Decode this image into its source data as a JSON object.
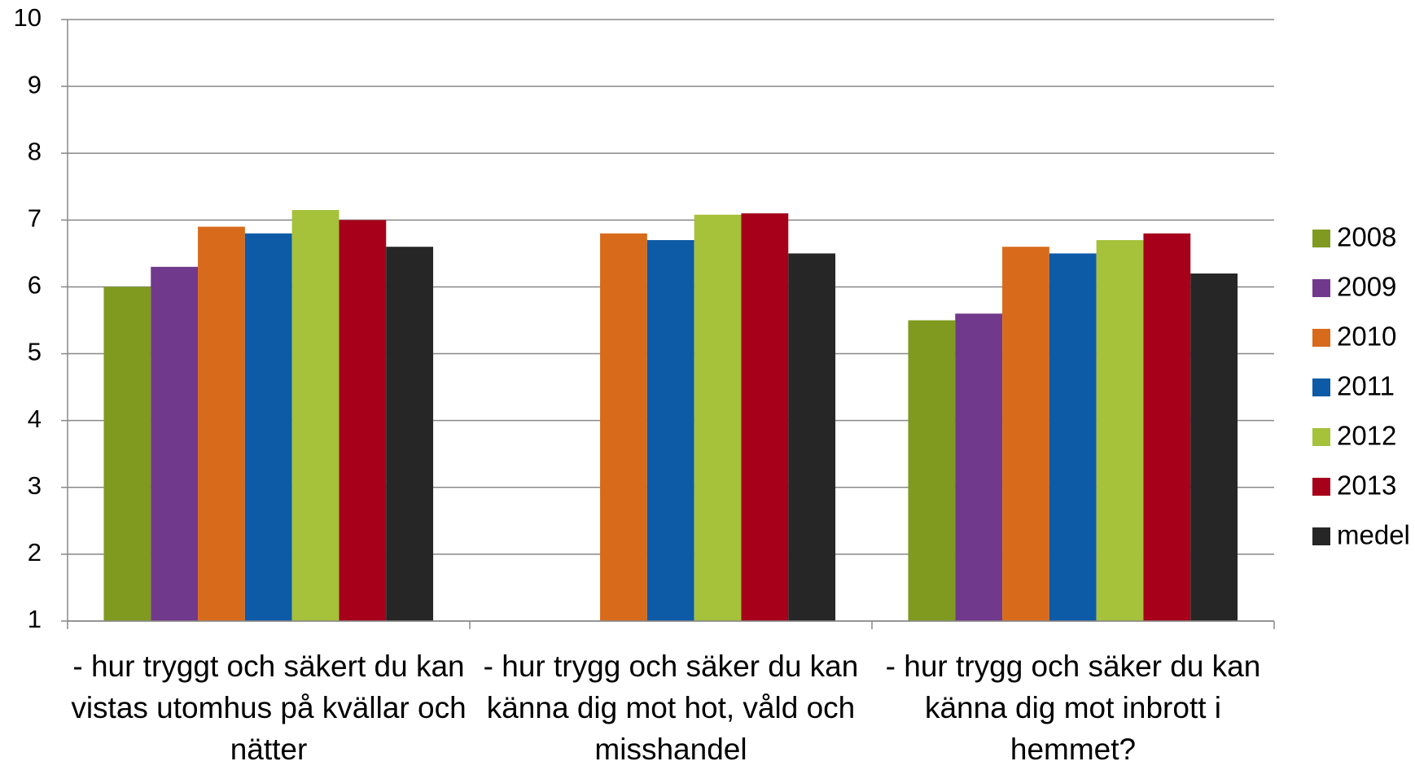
{
  "chart_data": {
    "type": "bar",
    "categories": [
      "- hur tryggt och säkert du kan vistas utomhus på kvällar och nätter",
      "- hur trygg och säker du kan känna dig mot hot, våld och misshandel",
      "- hur trygg och säker du kan känna dig mot inbrott i hemmet?"
    ],
    "series": [
      {
        "name": "2008",
        "color": "#7f9a1f",
        "values": [
          6.0,
          null,
          5.5
        ]
      },
      {
        "name": "2009",
        "color": "#71398b",
        "values": [
          6.3,
          null,
          5.6
        ]
      },
      {
        "name": "2010",
        "color": "#d86a1b",
        "values": [
          6.9,
          6.8,
          6.6
        ]
      },
      {
        "name": "2011",
        "color": "#0d5aa7",
        "values": [
          6.8,
          6.7,
          6.5
        ]
      },
      {
        "name": "2012",
        "color": "#a6c13a",
        "values": [
          7.15,
          7.08,
          6.7
        ]
      },
      {
        "name": "2013",
        "color": "#a6001a",
        "values": [
          7.0,
          7.1,
          6.8
        ]
      },
      {
        "name": "medel",
        "color": "#262626",
        "values": [
          6.6,
          6.5,
          6.2
        ]
      }
    ],
    "ylim": [
      1,
      10
    ],
    "yticks": [
      1,
      2,
      3,
      4,
      5,
      6,
      7,
      8,
      9,
      10
    ],
    "grid": true,
    "legend": "right"
  }
}
